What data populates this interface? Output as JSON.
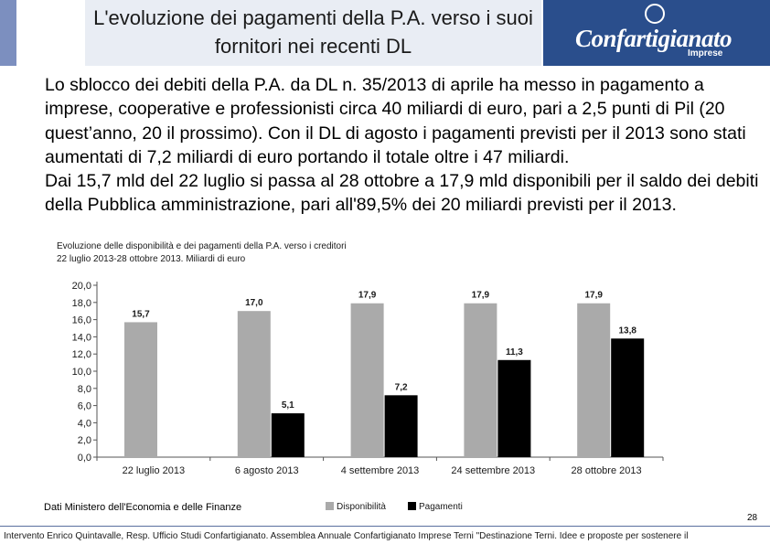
{
  "title": "L'evoluzione dei pagamenti della P.A. verso i suoi fornitori nei recenti DL",
  "body": {
    "paragraph1": "Lo sblocco dei debiti della P.A. da DL n. 35/2013 di aprile ha messo in pagamento a imprese, cooperative e professionisti circa 40 miliardi di euro, pari a 2,5 punti di Pil (20 quest’anno, 20 il prossimo). Con il DL di agosto i pagamenti previsti per il 2013 sono stati aumentati di 7,2 miliardi di euro portando il totale oltre i 47 miliardi.",
    "paragraph2": "Dai 15,7 mld del 22 luglio si passa al 28 ottobre a 17,9 mld disponibili per il saldo dei debiti della Pubblica amministrazione, pari all'89,5% dei 20 miliardi previsti per il 2013."
  },
  "logo": {
    "name": "Confartigianato",
    "sub": "Imprese",
    "bg_color": "#2a4e8c"
  },
  "chart_caption": {
    "line1": "Evoluzione delle disponibilità e dei pagamenti della P.A. verso i creditori",
    "line2": "22 luglio 2013-28 ottobre 2013. Miliardi di euro"
  },
  "chart_data": {
    "type": "bar",
    "categories": [
      "22 luglio 2013",
      "6 agosto 2013",
      "4 settembre 2013",
      "24 settembre 2013",
      "28 ottobre 2013"
    ],
    "series": [
      {
        "name": "Disponibilità",
        "values": [
          15.7,
          17.0,
          17.9,
          17.9,
          17.9
        ],
        "labels": [
          "15,7",
          "17,0",
          "17,9",
          "17,9",
          "17,9"
        ],
        "color": "#aaaaaa"
      },
      {
        "name": "Pagamenti",
        "values": [
          null,
          5.1,
          7.2,
          11.3,
          13.8
        ],
        "labels": [
          "",
          "5,1",
          "7,2",
          "11,3",
          "13,8"
        ],
        "color": "#000000"
      }
    ],
    "ylim": [
      0,
      20
    ],
    "yticks": [
      "0,0",
      "2,0",
      "4,0",
      "6,0",
      "8,0",
      "10,0",
      "12,0",
      "14,0",
      "16,0",
      "18,0",
      "20,0"
    ],
    "legend": "bottom-right",
    "grid": false
  },
  "source": "Dati Ministero dell'Economia e delle Finanze",
  "page_number": "28",
  "footer": "Intervento Enrico Quintavalle, Resp. Ufficio Studi Confartigianato. Assemblea Annuale Confartigianato Imprese Terni \"Destinazione Terni. Idee e proposte per sostenere il"
}
